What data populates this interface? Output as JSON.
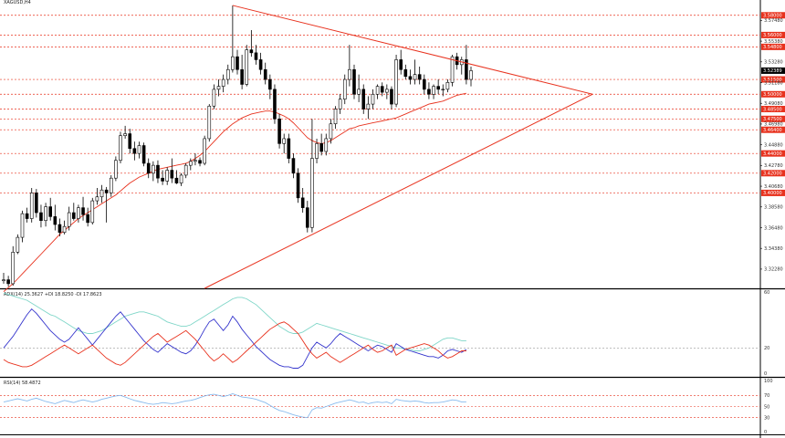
{
  "colors": {
    "background": "#ffffff",
    "axis": "#000000",
    "candle_up": "#ffffff",
    "candle_down": "#000000",
    "candle_outline": "#000000",
    "level_line": "#e8321e",
    "trend_line": "#e8321e",
    "moving_average": "#e8321e",
    "adx": "#7fd6c8",
    "plus_di": "#3333cc",
    "minus_di": "#e8321e",
    "rsi": "#88bbee",
    "badge_red": "#e8321e",
    "badge_black": "#000000"
  },
  "header": {
    "symbol": "XAGUSD,H4"
  },
  "chart_data": [
    {
      "id": "price",
      "type": "candlestick",
      "ylim": [
        3.3033,
        3.5955
      ],
      "price_axis_ticks": [
        "3.59580",
        "3.57480",
        "3.55380",
        "3.53280",
        "3.51180",
        "3.49080",
        "3.46980",
        "3.44880",
        "3.42780",
        "3.40680",
        "3.38580",
        "3.36480",
        "3.34380",
        "3.32280",
        "3.30330"
      ],
      "current_price": {
        "label": "3.52389",
        "value": 3.5239
      },
      "levels": [
        {
          "label": "3.60000",
          "value": 3.6
        },
        {
          "label": "3.58000",
          "value": 3.58
        },
        {
          "label": "3.56000",
          "value": 3.56
        },
        {
          "label": "3.54800",
          "value": 3.548
        },
        {
          "label": "3.51500",
          "value": 3.515
        },
        {
          "label": "3.50000",
          "value": 3.5
        },
        {
          "label": "3.48500",
          "value": 3.485
        },
        {
          "label": "3.47500",
          "value": 3.475
        },
        {
          "label": "3.46400",
          "value": 3.464
        },
        {
          "label": "3.44000",
          "value": 3.44
        },
        {
          "label": "3.42000",
          "value": 3.42
        },
        {
          "label": "3.40000",
          "value": 3.4
        }
      ],
      "candles": [
        [
          3.311,
          3.319,
          3.308,
          3.312
        ],
        [
          3.312,
          3.316,
          3.305,
          3.308
        ],
        [
          3.308,
          3.346,
          3.306,
          3.34
        ],
        [
          3.34,
          3.358,
          3.338,
          3.355
        ],
        [
          3.355,
          3.382,
          3.35,
          3.379
        ],
        [
          3.379,
          3.385,
          3.37,
          3.374
        ],
        [
          3.374,
          3.405,
          3.37,
          3.4
        ],
        [
          3.4,
          3.404,
          3.375,
          3.38
        ],
        [
          3.38,
          3.388,
          3.365,
          3.372
        ],
        [
          3.372,
          3.39,
          3.366,
          3.386
        ],
        [
          3.386,
          3.395,
          3.372,
          3.376
        ],
        [
          3.376,
          3.388,
          3.362,
          3.368
        ],
        [
          3.368,
          3.374,
          3.356,
          3.36
        ],
        [
          3.36,
          3.372,
          3.358,
          3.366
        ],
        [
          3.366,
          3.386,
          3.362,
          3.38
        ],
        [
          3.38,
          3.39,
          3.372,
          3.374
        ],
        [
          3.374,
          3.388,
          3.37,
          3.385
        ],
        [
          3.385,
          3.396,
          3.372,
          3.378
        ],
        [
          3.378,
          3.385,
          3.366,
          3.37
        ],
        [
          3.37,
          3.395,
          3.368,
          3.392
        ],
        [
          3.392,
          3.405,
          3.388,
          3.396
        ],
        [
          3.396,
          3.408,
          3.39,
          3.403
        ],
        [
          3.403,
          3.406,
          3.37,
          3.4
        ],
        [
          3.4,
          3.418,
          3.396,
          3.415
        ],
        [
          3.415,
          3.437,
          3.412,
          3.433
        ],
        [
          3.433,
          3.462,
          3.43,
          3.458
        ],
        [
          3.458,
          3.468,
          3.455,
          3.46
        ],
        [
          3.46,
          3.465,
          3.44,
          3.445
        ],
        [
          3.445,
          3.452,
          3.433,
          3.44
        ],
        [
          3.44,
          3.452,
          3.435,
          3.448
        ],
        [
          3.448,
          3.451,
          3.427,
          3.43
        ],
        [
          3.43,
          3.435,
          3.415,
          3.42
        ],
        [
          3.42,
          3.432,
          3.412,
          3.428
        ],
        [
          3.428,
          3.433,
          3.41,
          3.415
        ],
        [
          3.415,
          3.423,
          3.408,
          3.412
        ],
        [
          3.412,
          3.426,
          3.408,
          3.423
        ],
        [
          3.423,
          3.435,
          3.41,
          3.415
        ],
        [
          3.415,
          3.423,
          3.409,
          3.41
        ],
        [
          3.41,
          3.42,
          3.407,
          3.418
        ],
        [
          3.418,
          3.43,
          3.415,
          3.428
        ],
        [
          3.428,
          3.435,
          3.423,
          3.432
        ],
        [
          3.432,
          3.44,
          3.428,
          3.433
        ],
        [
          3.433,
          3.436,
          3.427,
          3.43
        ],
        [
          3.43,
          3.458,
          3.428,
          3.455
        ],
        [
          3.455,
          3.49,
          3.452,
          3.488
        ],
        [
          3.488,
          3.51,
          3.485,
          3.505
        ],
        [
          3.505,
          3.515,
          3.498,
          3.508
        ],
        [
          3.508,
          3.52,
          3.502,
          3.515
        ],
        [
          3.515,
          3.53,
          3.51,
          3.525
        ],
        [
          3.525,
          3.59,
          3.522,
          3.538
        ],
        [
          3.538,
          3.545,
          3.52,
          3.525
        ],
        [
          3.525,
          3.54,
          3.505,
          3.51
        ],
        [
          3.51,
          3.55,
          3.508,
          3.545
        ],
        [
          3.545,
          3.565,
          3.538,
          3.542
        ],
        [
          3.542,
          3.55,
          3.53,
          3.535
        ],
        [
          3.535,
          3.542,
          3.52,
          3.525
        ],
        [
          3.525,
          3.532,
          3.51,
          3.515
        ],
        [
          3.515,
          3.52,
          3.495,
          3.505
        ],
        [
          3.505,
          3.51,
          3.47,
          3.475
        ],
        [
          3.475,
          3.48,
          3.445,
          3.45
        ],
        [
          3.45,
          3.46,
          3.44,
          3.455
        ],
        [
          3.455,
          3.46,
          3.43,
          3.435
        ],
        [
          3.435,
          3.44,
          3.415,
          3.42
        ],
        [
          3.42,
          3.425,
          3.39,
          3.395
        ],
        [
          3.395,
          3.405,
          3.38,
          3.385
        ],
        [
          3.385,
          3.392,
          3.36,
          3.365
        ],
        [
          3.365,
          3.475,
          3.36,
          3.435
        ],
        [
          3.435,
          3.455,
          3.43,
          3.45
        ],
        [
          3.45,
          3.46,
          3.438,
          3.442
        ],
        [
          3.442,
          3.46,
          3.438,
          3.455
        ],
        [
          3.455,
          3.475,
          3.45,
          3.47
        ],
        [
          3.47,
          3.488,
          3.465,
          3.485
        ],
        [
          3.485,
          3.5,
          3.48,
          3.495
        ],
        [
          3.495,
          3.52,
          3.49,
          3.515
        ],
        [
          3.515,
          3.55,
          3.508,
          3.525
        ],
        [
          3.525,
          3.53,
          3.495,
          3.5
        ],
        [
          3.5,
          3.52,
          3.492,
          3.505
        ],
        [
          3.505,
          3.51,
          3.48,
          3.485
        ],
        [
          3.485,
          3.498,
          3.475,
          3.49
        ],
        [
          3.49,
          3.505,
          3.485,
          3.5
        ],
        [
          3.5,
          3.51,
          3.495,
          3.508
        ],
        [
          3.508,
          3.512,
          3.498,
          3.502
        ],
        [
          3.502,
          3.51,
          3.495,
          3.505
        ],
        [
          3.505,
          3.508,
          3.485,
          3.49
        ],
        [
          3.49,
          3.54,
          3.487,
          3.535
        ],
        [
          3.535,
          3.545,
          3.52,
          3.525
        ],
        [
          3.525,
          3.53,
          3.515,
          3.518
        ],
        [
          3.518,
          3.525,
          3.51,
          3.515
        ],
        [
          3.515,
          3.535,
          3.51,
          3.52
        ],
        [
          3.52,
          3.528,
          3.51,
          3.515
        ],
        [
          3.515,
          3.52,
          3.5,
          3.505
        ],
        [
          3.505,
          3.512,
          3.495,
          3.5
        ],
        [
          3.5,
          3.51,
          3.495,
          3.508
        ],
        [
          3.508,
          3.515,
          3.5,
          3.505
        ],
        [
          3.505,
          3.51,
          3.498,
          3.505
        ],
        [
          3.505,
          3.515,
          3.502,
          3.512
        ],
        [
          3.512,
          3.54,
          3.508,
          3.538
        ],
        [
          3.538,
          3.542,
          3.525,
          3.53
        ],
        [
          3.53,
          3.538,
          3.52,
          3.535
        ],
        [
          3.535,
          3.55,
          3.51,
          3.515
        ],
        [
          3.515,
          3.528,
          3.508,
          3.5239
        ]
      ],
      "ma": [
        3.3,
        3.304,
        3.308,
        3.313,
        3.318,
        3.323,
        3.328,
        3.333,
        3.338,
        3.343,
        3.348,
        3.353,
        3.358,
        3.362,
        3.366,
        3.37,
        3.374,
        3.377,
        3.38,
        3.383,
        3.386,
        3.389,
        3.392,
        3.395,
        3.398,
        3.402,
        3.406,
        3.41,
        3.413,
        3.416,
        3.418,
        3.42,
        3.422,
        3.424,
        3.425,
        3.426,
        3.427,
        3.428,
        3.429,
        3.43,
        3.432,
        3.435,
        3.438,
        3.442,
        3.447,
        3.452,
        3.457,
        3.462,
        3.466,
        3.47,
        3.473,
        3.476,
        3.478,
        3.48,
        3.481,
        3.482,
        3.483,
        3.483,
        3.482,
        3.48,
        3.478,
        3.475,
        3.471,
        3.466,
        3.461,
        3.456,
        3.453,
        3.451,
        3.45,
        3.451,
        3.453,
        3.456,
        3.459,
        3.462,
        3.465,
        3.466,
        3.468,
        3.469,
        3.47,
        3.471,
        3.472,
        3.473,
        3.474,
        3.475,
        3.476,
        3.478,
        3.48,
        3.482,
        3.484,
        3.486,
        3.488,
        3.49,
        3.491,
        3.492,
        3.493,
        3.495,
        3.497,
        3.499,
        3.5,
        3.501
      ],
      "trendlines": [
        {
          "from": {
            "bar": 49,
            "value": 3.59
          },
          "to": {
            "bar": 126,
            "value": 3.5
          }
        },
        {
          "from": {
            "bar": 43,
            "value": 3.3033
          },
          "to": {
            "bar": 126,
            "value": 3.5
          }
        }
      ]
    },
    {
      "id": "adx",
      "type": "line",
      "label": "ADX(14) 25.3627 +DI 18.8250 -DI 17.8623",
      "ylim": [
        0,
        60
      ],
      "y_ticks": [
        "60",
        "20",
        "0"
      ],
      "level": 20,
      "series": [
        {
          "name": "ADX",
          "values": [
            58,
            57,
            56,
            55,
            54,
            53,
            51,
            49,
            47,
            45,
            43,
            42,
            40,
            38,
            36,
            34,
            32,
            31,
            30,
            30,
            31,
            32,
            34,
            36,
            38,
            40,
            42,
            43,
            44,
            45,
            45,
            44,
            43,
            42,
            40,
            38,
            37,
            36,
            35,
            35,
            36,
            38,
            40,
            42,
            44,
            46,
            48,
            50,
            52,
            54,
            55,
            55,
            54,
            52,
            50,
            47,
            44,
            41,
            38,
            35,
            33,
            31,
            30,
            30,
            31,
            33,
            35,
            37,
            36,
            35,
            34,
            33,
            32,
            31,
            30,
            29,
            28,
            27,
            26,
            25,
            24,
            23,
            22,
            21,
            20,
            20,
            19,
            19,
            18,
            18,
            19,
            20,
            22,
            24,
            26,
            27,
            27,
            26,
            25,
            25
          ]
        },
        {
          "name": "+DI",
          "values": [
            20,
            24,
            28,
            33,
            38,
            43,
            47,
            44,
            40,
            36,
            32,
            29,
            26,
            24,
            26,
            30,
            34,
            30,
            26,
            22,
            26,
            30,
            34,
            38,
            42,
            45,
            41,
            37,
            33,
            29,
            25,
            22,
            19,
            17,
            20,
            23,
            21,
            19,
            17,
            16,
            18,
            22,
            27,
            33,
            38,
            40,
            36,
            32,
            36,
            42,
            38,
            33,
            29,
            25,
            21,
            18,
            15,
            12,
            10,
            8,
            7,
            7,
            6,
            6,
            8,
            14,
            20,
            24,
            22,
            20,
            23,
            27,
            30,
            28,
            26,
            24,
            22,
            20,
            18,
            20,
            22,
            21,
            19,
            17,
            23,
            21,
            19,
            18,
            17,
            16,
            15,
            14,
            14,
            13,
            15,
            18,
            19,
            18,
            17,
            19
          ]
        },
        {
          "name": "-DI",
          "values": [
            12,
            10,
            9,
            8,
            7,
            7,
            8,
            10,
            12,
            14,
            16,
            18,
            20,
            22,
            20,
            18,
            16,
            18,
            20,
            22,
            19,
            16,
            13,
            11,
            9,
            8,
            10,
            13,
            16,
            19,
            22,
            25,
            28,
            30,
            27,
            24,
            26,
            28,
            30,
            32,
            29,
            26,
            22,
            18,
            14,
            11,
            13,
            16,
            13,
            10,
            12,
            15,
            18,
            21,
            24,
            27,
            30,
            33,
            35,
            37,
            38,
            36,
            33,
            30,
            25,
            20,
            16,
            13,
            15,
            17,
            14,
            12,
            10,
            12,
            14,
            16,
            18,
            20,
            22,
            19,
            17,
            18,
            20,
            22,
            15,
            17,
            19,
            20,
            21,
            22,
            23,
            22,
            20,
            18,
            15,
            13,
            14,
            16,
            18,
            18
          ]
        }
      ]
    },
    {
      "id": "rsi",
      "type": "line",
      "label": "RSI(14) 58.4872",
      "ylim": [
        0,
        100
      ],
      "y_ticks": [
        "100",
        "70",
        "50",
        "30",
        "0"
      ],
      "levels": [
        70,
        50,
        30
      ],
      "series": [
        {
          "name": "RSI",
          "values": [
            58,
            60,
            62,
            64,
            62,
            60,
            63,
            65,
            62,
            59,
            57,
            55,
            58,
            61,
            59,
            57,
            60,
            62,
            60,
            58,
            60,
            63,
            65,
            67,
            69,
            70,
            67,
            64,
            61,
            59,
            57,
            55,
            54,
            55,
            57,
            56,
            55,
            56,
            58,
            60,
            61,
            63,
            66,
            69,
            71,
            72,
            70,
            68,
            70,
            73,
            70,
            67,
            66,
            65,
            63,
            60,
            57,
            52,
            47,
            43,
            41,
            38,
            35,
            33,
            31,
            30,
            44,
            48,
            47,
            50,
            53,
            56,
            58,
            60,
            62,
            60,
            57,
            58,
            55,
            57,
            58,
            57,
            58,
            55,
            63,
            61,
            60,
            59,
            60,
            59,
            57,
            56,
            57,
            57,
            58,
            60,
            62,
            61,
            58,
            58
          ]
        }
      ]
    }
  ]
}
